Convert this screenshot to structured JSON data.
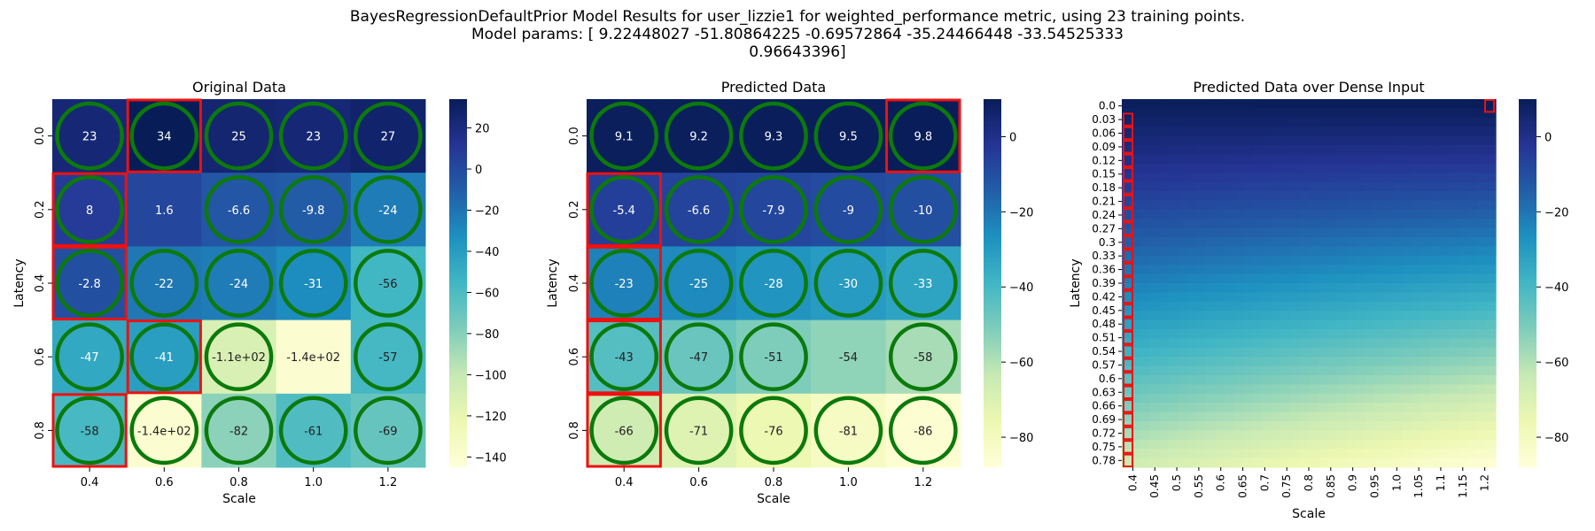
{
  "figure": {
    "title_line1": "BayesRegressionDefaultPrior Model Results for user_lizzie1 for weighted_performance metric, using 23 training points.",
    "title_line2": "Model params: [  9.22448027 -51.80864225  -0.69572864 -35.24466448 -33.54525333",
    "title_line3": "0.96643396]"
  },
  "colors": {
    "colormap": "YlGnBu",
    "circle": "#0b7a0b",
    "highlight": "#ee1111"
  },
  "chart_data": [
    {
      "type": "heatmap",
      "title": "Original Data",
      "xlabel": "Scale",
      "ylabel": "Latency",
      "x_ticks": [
        "0.4",
        "0.6",
        "0.8",
        "1.0",
        "1.2"
      ],
      "y_ticks": [
        "0.0",
        "0.2",
        "0.4",
        "0.6",
        "0.8"
      ],
      "values": [
        [
          23,
          34,
          25,
          23,
          27
        ],
        [
          8,
          1.6,
          -6.6,
          -9.8,
          -24
        ],
        [
          -2.8,
          -22,
          -24,
          -31,
          -56
        ],
        [
          -47,
          -41,
          -110,
          -140,
          -57
        ],
        [
          -58,
          -140,
          -82,
          -61,
          -69
        ]
      ],
      "labels": [
        [
          "23",
          "34",
          "25",
          "23",
          "27"
        ],
        [
          "8",
          "1.6",
          "-6.6",
          "-9.8",
          "-24"
        ],
        [
          "-2.8",
          "-22",
          "-24",
          "-31",
          "-56"
        ],
        [
          "-47",
          "-41",
          "-1.1e+02",
          "-1.4e+02",
          "-57"
        ],
        [
          "-58",
          "-1.4e+02",
          "-82",
          "-61",
          "-69"
        ]
      ],
      "circles": [
        [
          1,
          1,
          1,
          1,
          1
        ],
        [
          1,
          0,
          1,
          1,
          1
        ],
        [
          1,
          1,
          1,
          1,
          1
        ],
        [
          1,
          1,
          1,
          0,
          1
        ],
        [
          1,
          1,
          1,
          1,
          1
        ]
      ],
      "highlighted_cells": [
        [
          0,
          1
        ],
        [
          1,
          0
        ],
        [
          2,
          0
        ],
        [
          3,
          1
        ],
        [
          4,
          0
        ]
      ],
      "colorbar": {
        "min": -145,
        "max": 34,
        "ticks": [
          20,
          0,
          -20,
          -40,
          -60,
          -80,
          -100,
          -120,
          -140
        ]
      }
    },
    {
      "type": "heatmap",
      "title": "Predicted Data",
      "xlabel": "Scale",
      "ylabel": "Latency",
      "x_ticks": [
        "0.4",
        "0.6",
        "0.8",
        "1.0",
        "1.2"
      ],
      "y_ticks": [
        "0.0",
        "0.2",
        "0.4",
        "0.6",
        "0.8"
      ],
      "values": [
        [
          9.1,
          9.2,
          9.3,
          9.5,
          9.8
        ],
        [
          -5.4,
          -6.6,
          -7.9,
          -9,
          -10
        ],
        [
          -23,
          -25,
          -28,
          -30,
          -33
        ],
        [
          -43,
          -47,
          -51,
          -54,
          -58
        ],
        [
          -66,
          -71,
          -76,
          -81,
          -86
        ]
      ],
      "labels": [
        [
          "9.1",
          "9.2",
          "9.3",
          "9.5",
          "9.8"
        ],
        [
          "-5.4",
          "-6.6",
          "-7.9",
          "-9",
          "-10"
        ],
        [
          "-23",
          "-25",
          "-28",
          "-30",
          "-33"
        ],
        [
          "-43",
          "-47",
          "-51",
          "-54",
          "-58"
        ],
        [
          "-66",
          "-71",
          "-76",
          "-81",
          "-86"
        ]
      ],
      "circles": [
        [
          1,
          1,
          1,
          1,
          1
        ],
        [
          1,
          1,
          1,
          1,
          1
        ],
        [
          1,
          1,
          1,
          1,
          1
        ],
        [
          1,
          1,
          1,
          0,
          1
        ],
        [
          1,
          1,
          1,
          1,
          1
        ]
      ],
      "highlighted_cells": [
        [
          0,
          4
        ],
        [
          1,
          0
        ],
        [
          2,
          0
        ],
        [
          3,
          0
        ],
        [
          4,
          0
        ]
      ],
      "colorbar": {
        "min": -88,
        "max": 10,
        "ticks": [
          0,
          -20,
          -40,
          -60,
          -80
        ]
      }
    },
    {
      "type": "heatmap",
      "title": "Predicted Data over Dense Input",
      "xlabel": "Scale",
      "ylabel": "Latency",
      "x_ticks": [
        "0.4",
        "0.45",
        "0.5",
        "0.55",
        "0.6",
        "0.65",
        "0.7",
        "0.75",
        "0.8",
        "0.85",
        "0.9",
        "0.95",
        "1.0",
        "1.05",
        "1.1",
        "1.15",
        "1.2"
      ],
      "y_ticks": [
        "0.0",
        "0.03",
        "0.06",
        "0.09",
        "0.12",
        "0.15",
        "0.18",
        "0.21",
        "0.24",
        "0.27",
        "0.3",
        "0.33",
        "0.36",
        "0.39",
        "0.42",
        "0.45",
        "0.48",
        "0.51",
        "0.54",
        "0.57",
        "0.6",
        "0.63",
        "0.66",
        "0.69",
        "0.72",
        "0.75",
        "0.78"
      ],
      "grid_x": [
        0.4,
        1.2
      ],
      "grid_y": [
        0.0,
        0.8
      ],
      "model_params": [
        9.22448027,
        -51.80864225,
        -0.69572864,
        -35.24466448,
        -33.54525333,
        0.96643396
      ],
      "value_range": [
        -88,
        10
      ],
      "highlighted_column": "0.4",
      "highlighted_corner": [
        "0.0",
        "1.2"
      ],
      "colorbar": {
        "min": -88,
        "max": 10,
        "ticks": [
          0,
          -20,
          -40,
          -60,
          -80
        ]
      }
    }
  ]
}
